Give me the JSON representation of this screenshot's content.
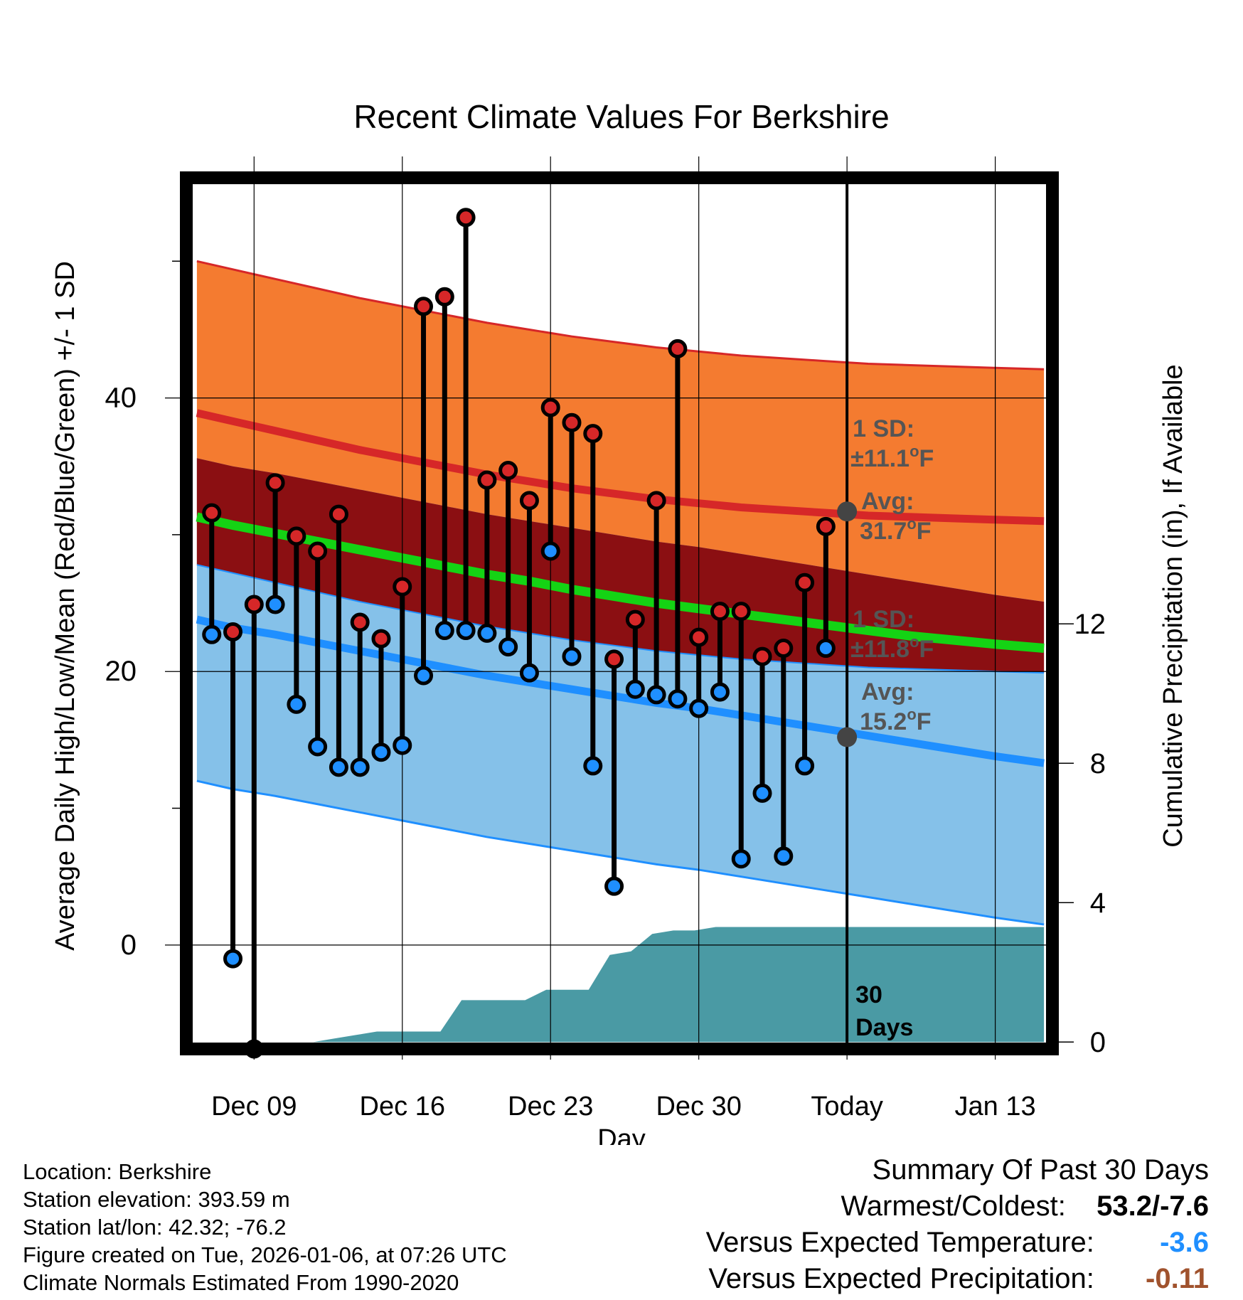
{
  "chart_data": {
    "type": "line",
    "title": "Recent Climate Values For Berkshire",
    "xlabel": "Day",
    "ylabel_left": "Average Daily High/Low/Mean (Red/Blue/Green) +/- 1 SD",
    "ylabel_right": "Cumulative Precipitation (in), If Available",
    "x_ticks": [
      {
        "day": 9,
        "label": "Dec 09"
      },
      {
        "day": 16,
        "label": "Dec 16"
      },
      {
        "day": 23,
        "label": "Dec 23"
      },
      {
        "day": 30,
        "label": "Dec 30"
      },
      {
        "day": 37,
        "label": "Today"
      },
      {
        "day": 44,
        "label": "Jan 13"
      }
    ],
    "x_range": [
      5.8,
      46.7
    ],
    "temp_ylim": [
      -7.6,
      56.1
    ],
    "temp_ticks": [
      0,
      20,
      40
    ],
    "temp_minor_ticks": [
      -10,
      10,
      30,
      50
    ],
    "precip_ylim": [
      -0.2,
      24.8
    ],
    "precip_ticks": [
      0,
      4,
      8,
      12
    ],
    "today_day": 37,
    "today_label": "30 Days",
    "normals": {
      "days": [
        6.3,
        8,
        10,
        12,
        14,
        16,
        18,
        20,
        22,
        24,
        26,
        28,
        30,
        32,
        34,
        36,
        38,
        40,
        42,
        44,
        46.3
      ],
      "high_mean": [
        38.9,
        38.3,
        37.6,
        36.9,
        36.2,
        35.6,
        35.0,
        34.4,
        33.9,
        33.4,
        33.0,
        32.6,
        32.3,
        32.0,
        31.8,
        31.6,
        31.4,
        31.3,
        31.2,
        31.1,
        31.0
      ],
      "high_sd": 11.1,
      "low_mean": [
        23.8,
        23.2,
        22.7,
        22.1,
        21.5,
        20.9,
        20.3,
        19.7,
        19.2,
        18.7,
        18.2,
        17.7,
        17.3,
        16.8,
        16.3,
        15.8,
        15.3,
        14.8,
        14.3,
        13.8,
        13.3
      ],
      "low_sd": 11.8,
      "avg_mean": [
        31.3,
        30.7,
        30.1,
        29.5,
        28.9,
        28.3,
        27.7,
        27.1,
        26.6,
        26.0,
        25.5,
        25.0,
        24.6,
        24.2,
        23.8,
        23.4,
        23.0,
        22.6,
        22.3,
        22.0,
        21.7
      ]
    },
    "series": [
      {
        "name": "High",
        "color": "#d62728",
        "values": [
          31.6,
          22.9,
          24.9,
          33.8,
          29.9,
          28.8,
          31.5,
          23.6,
          22.4,
          26.2,
          46.7,
          47.4,
          53.2,
          34.0,
          34.7,
          32.5,
          39.3,
          38.2,
          37.4,
          20.9,
          23.8,
          32.5,
          43.6,
          22.5,
          24.4,
          24.4,
          21.1,
          21.7,
          26.5,
          30.6
        ]
      },
      {
        "name": "Low",
        "color": "#1f8fff",
        "values": [
          22.7,
          -1.0,
          -7.6,
          24.9,
          17.6,
          14.5,
          13.0,
          13.0,
          14.1,
          14.6,
          19.7,
          23.0,
          23.0,
          22.8,
          21.8,
          19.9,
          28.8,
          21.1,
          13.1,
          4.3,
          18.7,
          18.3,
          18.0,
          17.3,
          18.5,
          6.3,
          11.1,
          6.5,
          13.1,
          21.7
        ]
      },
      {
        "name": "Cumulative Precipitation",
        "color": "#4a9aa4",
        "values": [
          0.0,
          0.0,
          0.0,
          0.0,
          0.0,
          0.0,
          0.1,
          0.2,
          0.3,
          0.3,
          0.3,
          0.3,
          1.2,
          1.2,
          1.2,
          1.2,
          1.5,
          1.5,
          1.5,
          2.5,
          2.6,
          3.1,
          3.2,
          3.2,
          3.3,
          3.3,
          3.3,
          3.3,
          3.3,
          3.3,
          3.3
        ]
      }
    ],
    "first_obs_day": 7,
    "precip_start_day": 6.8,
    "precip_end_day": 46.3,
    "annotations": {
      "high_sd_label": "1 SD:",
      "high_sd_value": "±11.1°F",
      "high_avg_label": "Avg:",
      "high_avg_value": "31.7°F",
      "high_avg_marker": 31.7,
      "low_sd_label": "1 SD:",
      "low_sd_value": "±11.8°F",
      "low_avg_label": "Avg:",
      "low_avg_value": "15.2°F",
      "low_avg_marker": 15.2
    },
    "colors": {
      "high_band": "#f47b30",
      "high_line": "#d62728",
      "low_band": "#85c1e9",
      "low_line": "#1f8fff",
      "overlap_band": "#8b0f12",
      "avg_line": "#14d314",
      "precip_fill": "#4a9aa4",
      "annotation_text": "#555555"
    }
  },
  "footer": {
    "location": "Location: Berkshire",
    "elevation": "Station elevation: 393.59 m",
    "latlon": "Station lat/lon: 42.32; -76.2",
    "created": "Figure created on Tue, 2026-01-06, at 07:26 UTC",
    "normals": "Climate Normals Estimated From 1990-2020"
  },
  "summary": {
    "title": "Summary Of Past 30 Days",
    "warm_cold_label": "Warmest/Coldest:",
    "warm_value": "53.2",
    "cold_value": "/-7.6",
    "temp_label": "Versus Expected Temperature:",
    "temp_value": "-3.6",
    "temp_color": "#1f8fff",
    "precip_label": "Versus Expected Precipitation:",
    "precip_value": "-0.11",
    "precip_color": "#a0522d"
  }
}
